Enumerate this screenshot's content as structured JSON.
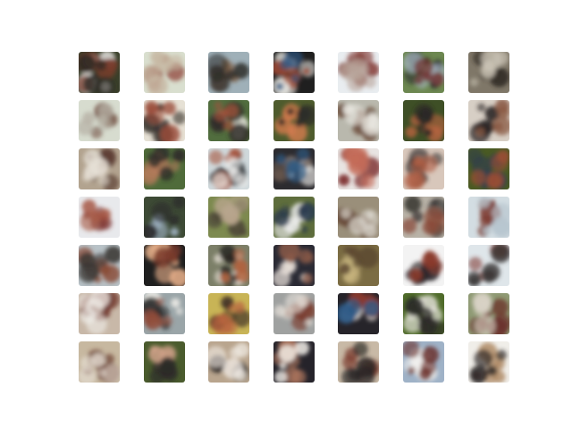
{
  "grid": {
    "rows": 7,
    "cols": 7,
    "tiles": [
      {
        "bg": "#3a3f2a",
        "blobs": [
          {
            "c": "#f3f1f0",
            "s": 2
          },
          {
            "c": "#7a3b2c",
            "s": 3
          },
          {
            "c": "#2c2a24",
            "s": 2
          }
        ]
      },
      {
        "bg": "#d9dfcf",
        "blobs": [
          {
            "c": "#8b3a2f",
            "s": 2
          },
          {
            "c": "#c7b8a3",
            "s": 2
          }
        ]
      },
      {
        "bg": "#9fb0b8",
        "blobs": [
          {
            "c": "#7c5a3f",
            "s": 3
          },
          {
            "c": "#2f2e2b",
            "s": 2
          }
        ]
      },
      {
        "bg": "#1f1f1f",
        "blobs": [
          {
            "c": "#f0efe9",
            "s": 2
          },
          {
            "c": "#a14b34",
            "s": 2
          },
          {
            "c": "#2d5480",
            "s": 1
          }
        ]
      },
      {
        "bg": "#e9edf0",
        "blobs": [
          {
            "c": "#7b2e28",
            "s": 3
          },
          {
            "c": "#b8a49a",
            "s": 2
          }
        ]
      },
      {
        "bg": "#6c8750",
        "blobs": [
          {
            "c": "#2b2b2f",
            "s": 3
          },
          {
            "c": "#a8b8c6",
            "s": 2
          },
          {
            "c": "#6e2b2a",
            "s": 1
          }
        ]
      },
      {
        "bg": "#7f7768",
        "blobs": [
          {
            "c": "#2b2321",
            "s": 3
          },
          {
            "c": "#c9c2b3",
            "s": 2
          }
        ]
      },
      {
        "bg": "#d7dccf",
        "blobs": [
          {
            "c": "#6f4a3c",
            "s": 2
          },
          {
            "c": "#b8b4a8",
            "s": 2
          }
        ]
      },
      {
        "bg": "#e6e1d5",
        "blobs": [
          {
            "c": "#2b2522",
            "s": 3
          },
          {
            "c": "#9a4a38",
            "s": 2
          }
        ]
      },
      {
        "bg": "#516d3e",
        "blobs": [
          {
            "c": "#f2f0ea",
            "s": 2
          },
          {
            "c": "#2d2a26",
            "s": 2
          },
          {
            "c": "#a2523b",
            "s": 2
          }
        ]
      },
      {
        "bg": "#4e5b2d",
        "blobs": [
          {
            "c": "#d37b4e",
            "s": 2
          },
          {
            "c": "#2b2a27",
            "s": 2
          }
        ]
      },
      {
        "bg": "#b9b8ad",
        "blobs": [
          {
            "c": "#6b4a38",
            "s": 3
          },
          {
            "c": "#e9e8e2",
            "s": 2
          }
        ]
      },
      {
        "bg": "#3e4f26",
        "blobs": [
          {
            "c": "#b5633f",
            "s": 3
          },
          {
            "c": "#2a2825",
            "s": 2
          }
        ]
      },
      {
        "bg": "#d7cfc5",
        "blobs": [
          {
            "c": "#2a2422",
            "s": 3
          },
          {
            "c": "#8a5a44",
            "s": 2
          }
        ]
      },
      {
        "bg": "#b2a38f",
        "blobs": [
          {
            "c": "#5d3e33",
            "s": 3
          },
          {
            "c": "#e6e0d6",
            "s": 2
          }
        ]
      },
      {
        "bg": "#4f6b3a",
        "blobs": [
          {
            "c": "#b57a5b",
            "s": 3
          },
          {
            "c": "#2c2b29",
            "s": 2
          }
        ]
      },
      {
        "bg": "#cfd8db",
        "blobs": [
          {
            "c": "#2b2f33",
            "s": 2
          },
          {
            "c": "#a7563f",
            "s": 2
          },
          {
            "c": "#f4f3f1",
            "s": 2
          }
        ]
      },
      {
        "bg": "#2c2b2f",
        "blobs": [
          {
            "c": "#f1f0ed",
            "s": 2
          },
          {
            "c": "#6b5a4f",
            "s": 2
          },
          {
            "c": "#2d5b86",
            "s": 1
          }
        ]
      },
      {
        "bg": "#e8e4e2",
        "blobs": [
          {
            "c": "#7a2a2a",
            "s": 2
          },
          {
            "c": "#c56d5a",
            "s": 2
          }
        ]
      },
      {
        "bg": "#d8c7bb",
        "blobs": [
          {
            "c": "#2b2624",
            "s": 3
          },
          {
            "c": "#b06046",
            "s": 2
          }
        ]
      },
      {
        "bg": "#4a5a23",
        "blobs": [
          {
            "c": "#2f3e4d",
            "s": 2
          },
          {
            "c": "#9a4d35",
            "s": 2
          }
        ]
      },
      {
        "bg": "#e8e9ec",
        "blobs": [
          {
            "c": "#7a2e2a",
            "s": 2
          },
          {
            "c": "#a75a47",
            "s": 2
          }
        ]
      },
      {
        "bg": "#3d4a35",
        "blobs": [
          {
            "c": "#a2b5c7",
            "s": 2
          },
          {
            "c": "#2b2b2b",
            "s": 2
          }
        ]
      },
      {
        "bg": "#7d8a4f",
        "blobs": [
          {
            "c": "#4a4336",
            "s": 3
          },
          {
            "c": "#b8a58d",
            "s": 2
          }
        ]
      },
      {
        "bg": "#5e6d3c",
        "blobs": [
          {
            "c": "#eeeeef",
            "s": 2
          },
          {
            "c": "#2a3a4d",
            "s": 2
          }
        ]
      },
      {
        "bg": "#9a8f7a",
        "blobs": [
          {
            "c": "#6a4c3a",
            "s": 3
          },
          {
            "c": "#d9d5cd",
            "s": 2
          }
        ]
      },
      {
        "bg": "#b8b2a7",
        "blobs": [
          {
            "c": "#2a2523",
            "s": 2
          },
          {
            "c": "#8b4d3c",
            "s": 2
          }
        ]
      },
      {
        "bg": "#d3dde2",
        "blobs": [
          {
            "c": "#7b3a30",
            "s": 2
          },
          {
            "c": "#b8c6cf",
            "s": 2
          }
        ]
      },
      {
        "bg": "#b8c2c7",
        "blobs": [
          {
            "c": "#8a4d3a",
            "s": 3
          },
          {
            "c": "#3a3632",
            "s": 2
          }
        ]
      },
      {
        "bg": "#1f1f1f",
        "blobs": [
          {
            "c": "#e8b08a",
            "s": 2
          },
          {
            "c": "#7a3a2b",
            "s": 2
          }
        ]
      },
      {
        "bg": "#7c7f68",
        "blobs": [
          {
            "c": "#e8e2d8",
            "s": 2
          },
          {
            "c": "#2b2824",
            "s": 2
          },
          {
            "c": "#b0633f",
            "s": 2
          }
        ]
      },
      {
        "bg": "#2a2a34",
        "blobs": [
          {
            "c": "#f0e7df",
            "s": 2
          },
          {
            "c": "#8a5a48",
            "s": 2
          }
        ]
      },
      {
        "bg": "#7b6c43",
        "blobs": [
          {
            "c": "#c9b77f",
            "s": 2
          },
          {
            "c": "#5a4630",
            "s": 2
          }
        ]
      },
      {
        "bg": "#f3f3f3",
        "blobs": [
          {
            "c": "#2a2428",
            "s": 3
          },
          {
            "c": "#8b3a2c",
            "s": 2
          }
        ]
      },
      {
        "bg": "#dfe6ea",
        "blobs": [
          {
            "c": "#7a2f2a",
            "s": 2
          },
          {
            "c": "#3d3a3a",
            "s": 2
          }
        ]
      },
      {
        "bg": "#c8b8a8",
        "blobs": [
          {
            "c": "#6b2e25",
            "s": 3
          },
          {
            "c": "#f0eee9",
            "s": 2
          }
        ]
      },
      {
        "bg": "#9aa5a8",
        "blobs": [
          {
            "c": "#f2f0eb",
            "s": 2
          },
          {
            "c": "#2b2b2b",
            "s": 2
          },
          {
            "c": "#8f4b3a",
            "s": 2
          }
        ]
      },
      {
        "bg": "#c8b456",
        "blobs": [
          {
            "c": "#3a2b24",
            "s": 3
          },
          {
            "c": "#b9653f",
            "s": 2
          }
        ]
      },
      {
        "bg": "#9fa1a0",
        "blobs": [
          {
            "c": "#7a3a2b",
            "s": 2
          },
          {
            "c": "#e4dfd8",
            "s": 2
          }
        ]
      },
      {
        "bg": "#26242a",
        "blobs": [
          {
            "c": "#d6d1cc",
            "s": 2
          },
          {
            "c": "#8b3a2e",
            "s": 2
          },
          {
            "c": "#2e5a86",
            "s": 1
          }
        ]
      },
      {
        "bg": "#4f6b2a",
        "blobs": [
          {
            "c": "#e9e6e0",
            "s": 2
          },
          {
            "c": "#2b2a27",
            "s": 2
          }
        ]
      },
      {
        "bg": "#8f9a74",
        "blobs": [
          {
            "c": "#6a2f2a",
            "s": 3
          },
          {
            "c": "#d8d2c5",
            "s": 2
          }
        ]
      },
      {
        "bg": "#c7b8a0",
        "blobs": [
          {
            "c": "#6a3b2f",
            "s": 3
          },
          {
            "c": "#e7e1d7",
            "s": 2
          }
        ]
      },
      {
        "bg": "#4a5b2d",
        "blobs": [
          {
            "c": "#d2a28a",
            "s": 2
          },
          {
            "c": "#2c2a28",
            "s": 2
          }
        ]
      },
      {
        "bg": "#b9a58e",
        "blobs": [
          {
            "c": "#2b2524",
            "s": 2
          },
          {
            "c": "#efe9e2",
            "s": 2
          }
        ]
      },
      {
        "bg": "#25232a",
        "blobs": [
          {
            "c": "#b57a5f",
            "s": 2
          },
          {
            "c": "#f2efe9",
            "s": 1
          }
        ]
      },
      {
        "bg": "#c8b9a6",
        "blobs": [
          {
            "c": "#7a3b2d",
            "s": 3
          },
          {
            "c": "#2c2827",
            "s": 2
          }
        ]
      },
      {
        "bg": "#9fb2c7",
        "blobs": [
          {
            "c": "#f1f0ee",
            "s": 3
          },
          {
            "c": "#6a2f2a",
            "s": 2
          }
        ]
      },
      {
        "bg": "#f0eee9",
        "blobs": [
          {
            "c": "#b08b66",
            "s": 2
          },
          {
            "c": "#2a2523",
            "s": 2
          }
        ]
      }
    ]
  }
}
